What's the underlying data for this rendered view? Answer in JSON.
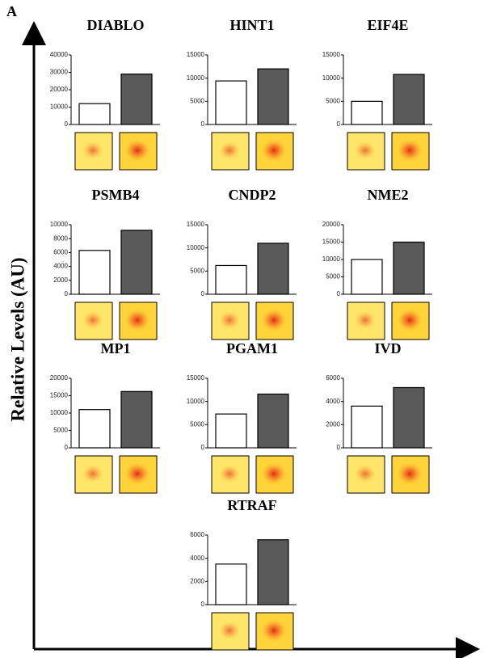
{
  "panel_label": "A",
  "axis_label": "Relative Levels (AU)",
  "chart_data": [
    {
      "type": "bar",
      "title": "DIABLO",
      "values": [
        12000,
        29000
      ],
      "colors": [
        "#ffffff",
        "#595959"
      ],
      "ylim": [
        0,
        40000
      ],
      "yticks": [
        0,
        10000,
        20000,
        30000,
        40000
      ]
    },
    {
      "type": "bar",
      "title": "HINT1",
      "values": [
        9400,
        12000
      ],
      "colors": [
        "#ffffff",
        "#595959"
      ],
      "ylim": [
        0,
        15000
      ],
      "yticks": [
        0,
        5000,
        10000,
        15000
      ]
    },
    {
      "type": "bar",
      "title": "EIF4E",
      "values": [
        5000,
        10800
      ],
      "colors": [
        "#ffffff",
        "#595959"
      ],
      "ylim": [
        0,
        15000
      ],
      "yticks": [
        0,
        5000,
        10000,
        15000
      ]
    },
    {
      "type": "bar",
      "title": "PSMB4",
      "values": [
        6300,
        9200
      ],
      "colors": [
        "#ffffff",
        "#595959"
      ],
      "ylim": [
        0,
        10000
      ],
      "yticks": [
        0,
        2000,
        4000,
        6000,
        8000,
        10000
      ]
    },
    {
      "type": "bar",
      "title": "CNDP2",
      "values": [
        6200,
        11000
      ],
      "colors": [
        "#ffffff",
        "#595959"
      ],
      "ylim": [
        0,
        15000
      ],
      "yticks": [
        0,
        5000,
        10000,
        15000
      ]
    },
    {
      "type": "bar",
      "title": "NME2",
      "values": [
        10000,
        15000
      ],
      "colors": [
        "#ffffff",
        "#595959"
      ],
      "ylim": [
        0,
        20000
      ],
      "yticks": [
        0,
        5000,
        10000,
        15000,
        20000
      ]
    },
    {
      "type": "bar",
      "title": "MP1",
      "values": [
        11000,
        16200
      ],
      "colors": [
        "#ffffff",
        "#595959"
      ],
      "ylim": [
        0,
        20000
      ],
      "yticks": [
        0,
        5000,
        10000,
        15000,
        20000
      ]
    },
    {
      "type": "bar",
      "title": "PGAM1",
      "values": [
        7300,
        11600
      ],
      "colors": [
        "#ffffff",
        "#595959"
      ],
      "ylim": [
        0,
        15000
      ],
      "yticks": [
        0,
        5000,
        10000,
        15000
      ]
    },
    {
      "type": "bar",
      "title": "IVD",
      "values": [
        3600,
        5200
      ],
      "colors": [
        "#ffffff",
        "#595959"
      ],
      "ylim": [
        0,
        6000
      ],
      "yticks": [
        0,
        2000,
        4000,
        6000
      ]
    },
    {
      "type": "bar",
      "title": "RTRAF",
      "values": [
        3500,
        5600
      ],
      "colors": [
        "#ffffff",
        "#595959"
      ],
      "ylim": [
        0,
        6000
      ],
      "yticks": [
        0,
        2000,
        4000,
        6000
      ]
    }
  ]
}
